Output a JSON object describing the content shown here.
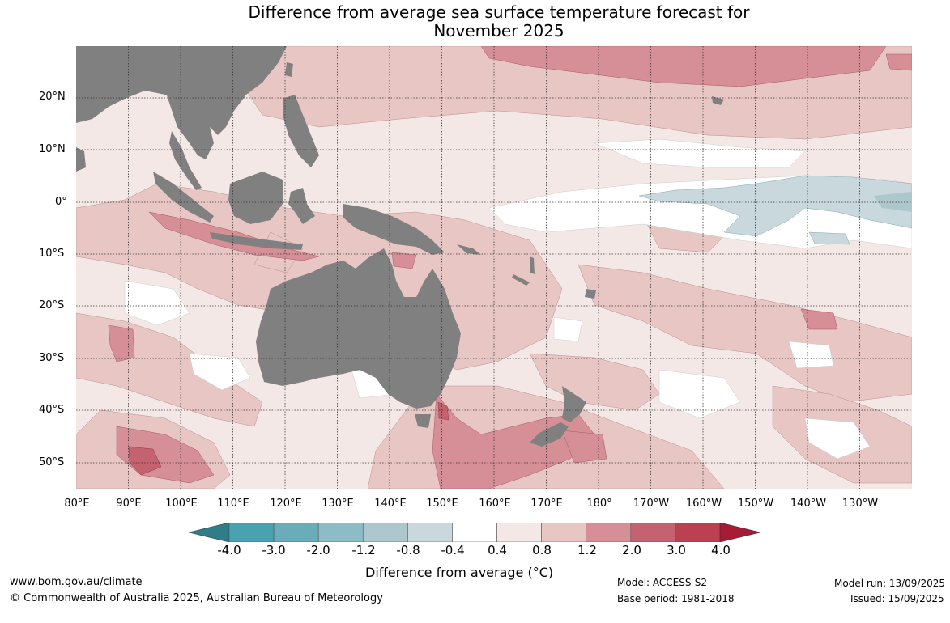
{
  "title_line1": "Difference from average sea surface temperature forecast for",
  "title_line2": "November 2025",
  "lat_labels": [
    "20°N",
    "10°N",
    "0°",
    "10°S",
    "20°S",
    "30°S",
    "40°S",
    "50°S"
  ],
  "lon_labels": [
    "80°E",
    "90°E",
    "100°E",
    "110°E",
    "120°E",
    "130°E",
    "140°E",
    "150°E",
    "160°E",
    "170°E",
    "180°",
    "170°W",
    "160°W",
    "150°W",
    "140°W",
    "130°W"
  ],
  "colorbar": {
    "ticks": [
      "-4.0",
      "-3.0",
      "-2.0",
      "-1.2",
      "-0.8",
      "-0.4",
      "0.4",
      "0.8",
      "1.2",
      "2.0",
      "3.0",
      "4.0"
    ],
    "colors": {
      "below": "#2e7e89",
      "bins": [
        "#48a2b2",
        "#6aadba",
        "#8cbcc5",
        "#acc8cd",
        "#c8d8dc",
        "#ffffff",
        "#f4e8e7",
        "#e8c6c4",
        "#d78f97",
        "#c5626f",
        "#bb4150"
      ],
      "above": "#a71c35"
    },
    "label": "Difference from average (°C)"
  },
  "map_colors": {
    "land": "#808080",
    "grid": "#333333"
  },
  "footer": {
    "website": "www.bom.gov.au/climate",
    "copyright": "© Commonwealth of Australia 2025, Australian Bureau of Meteorology",
    "model": "Model: ACCESS-S2",
    "base_period": "Base period: 1981-2018",
    "model_run": "Model run: 13/09/2025",
    "issued": "Issued: 15/09/2025"
  }
}
